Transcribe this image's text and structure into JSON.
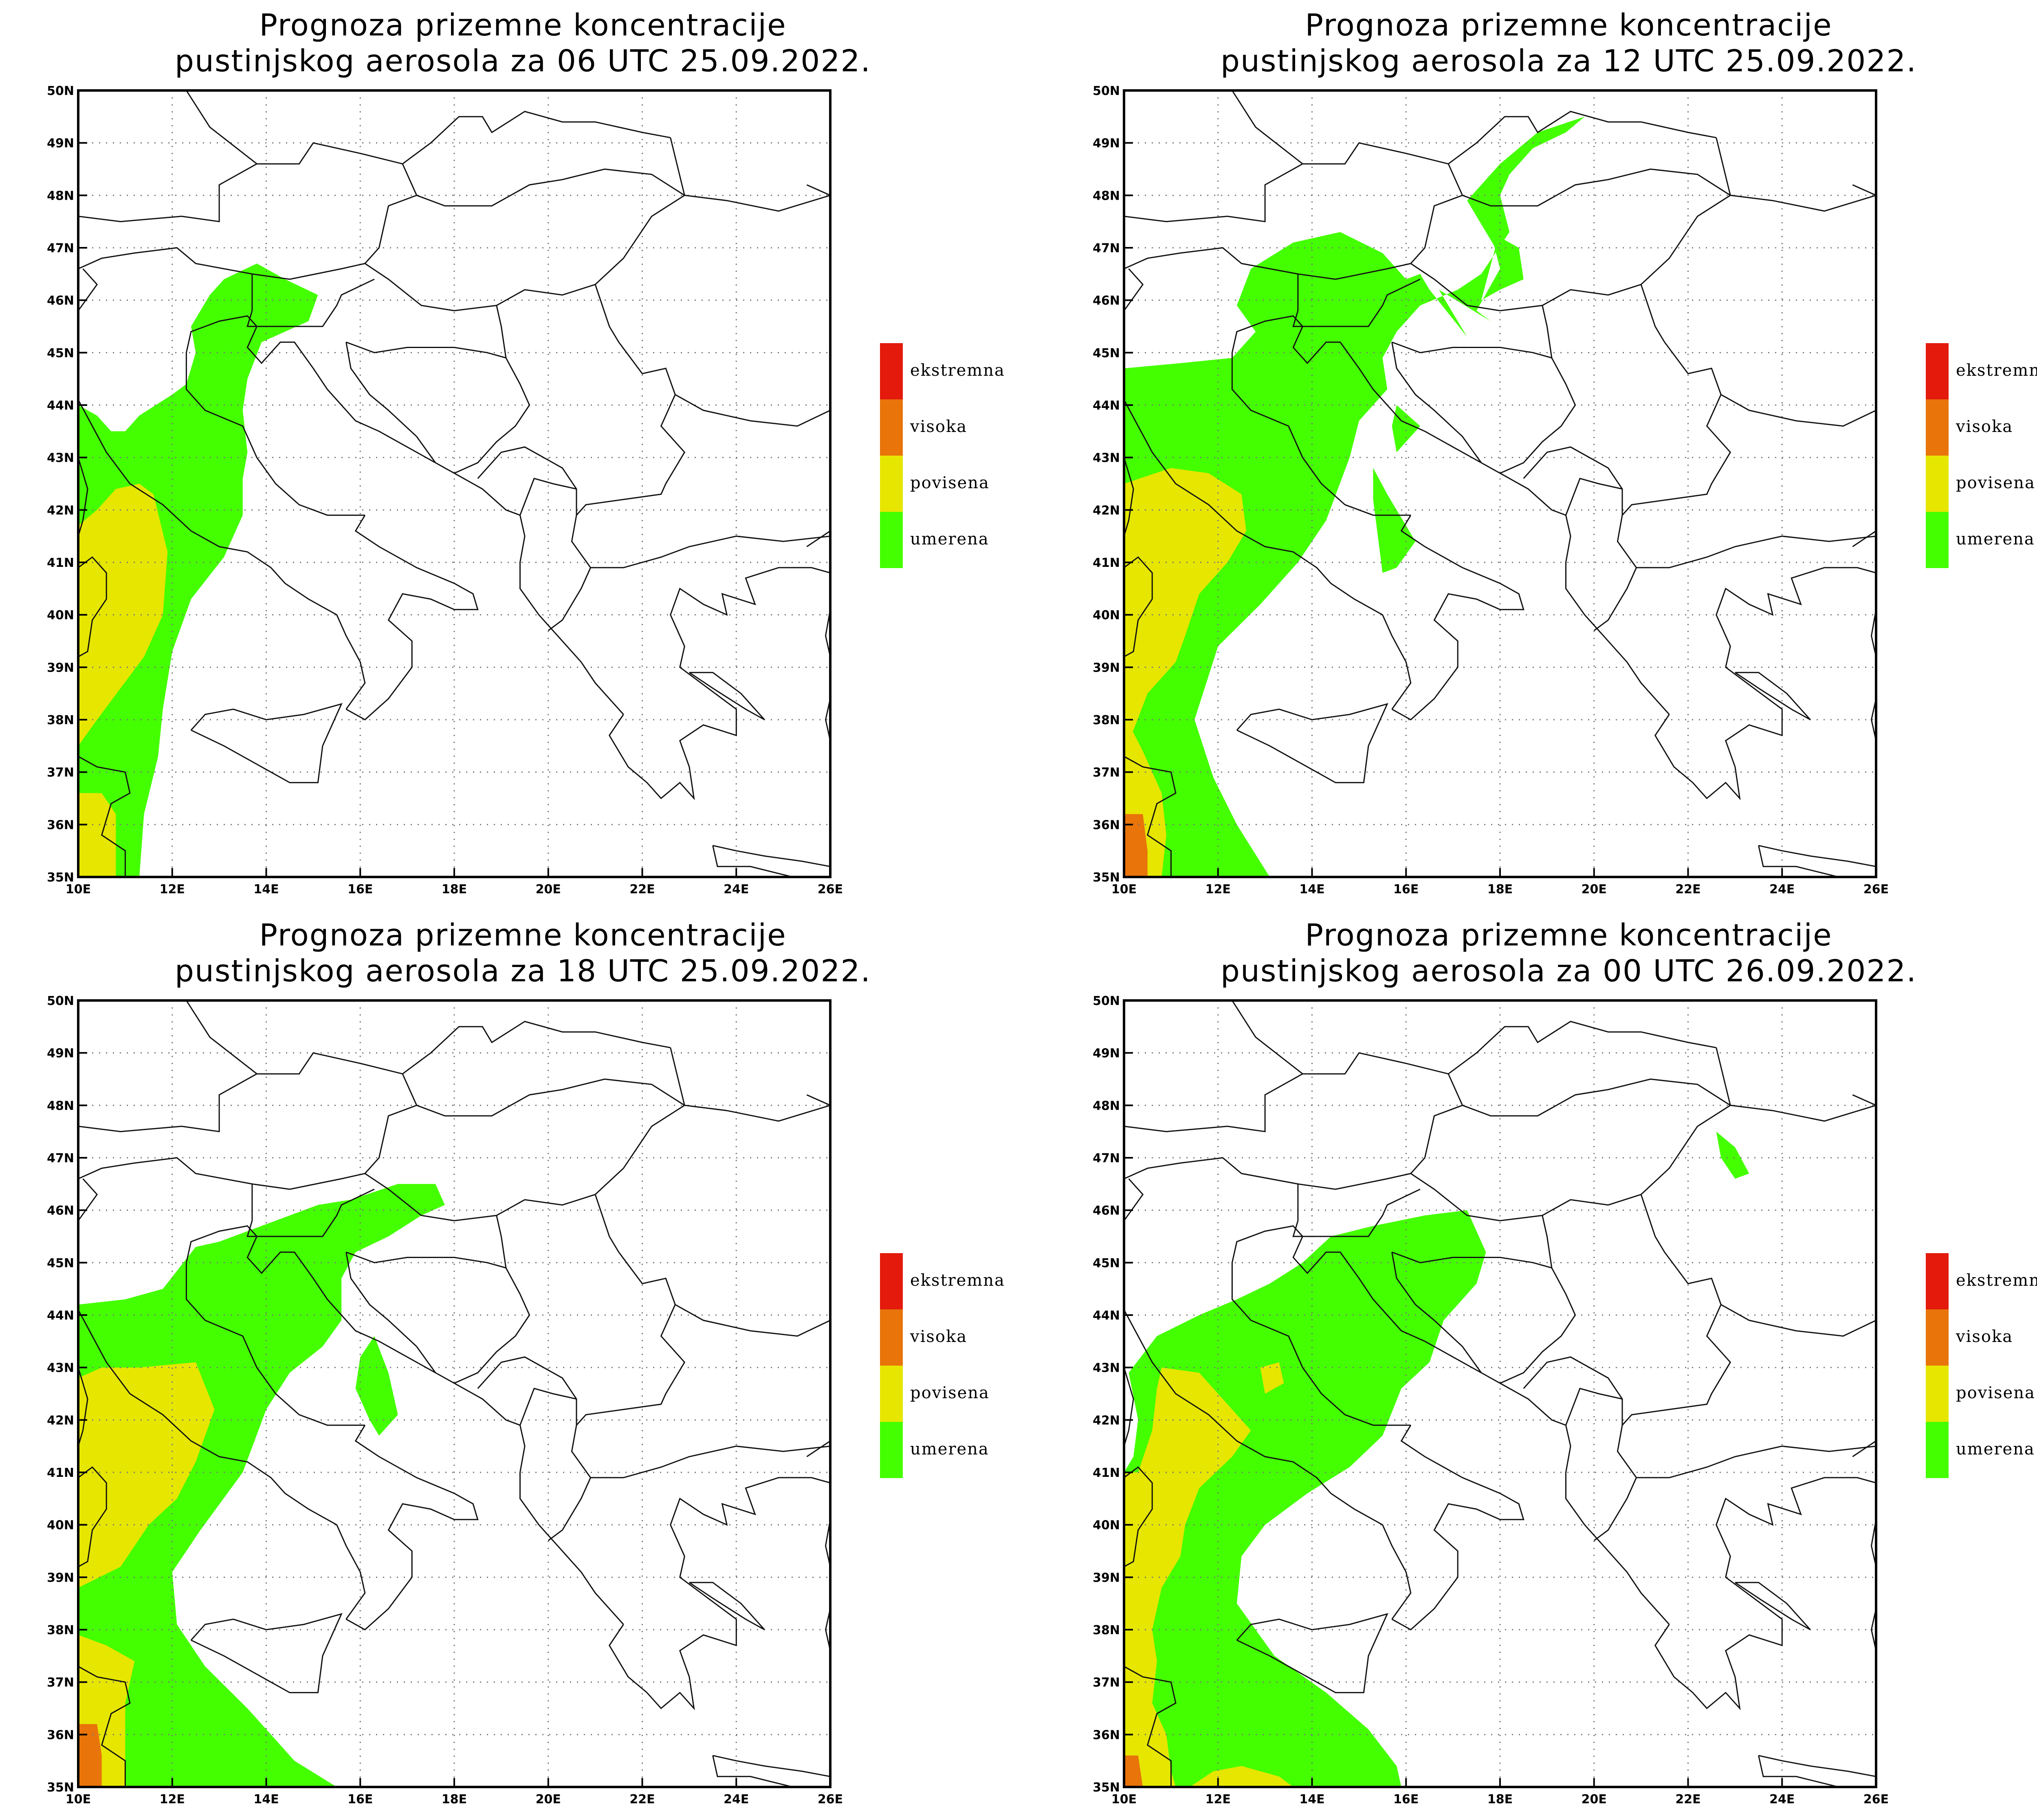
{
  "panels": [
    {
      "title_line1": "Prognoza prizemne koncentracije",
      "title_line2": "pustinjskog aerosola za 06 UTC 25.09.2022."
    },
    {
      "title_line1": "Prognoza prizemne koncentracije",
      "title_line2": "pustinjskog aerosola za 12 UTC 25.09.2022."
    },
    {
      "title_line1": "Prognoza prizemne koncentracije",
      "title_line2": "pustinjskog aerosola za 18 UTC 25.09.2022."
    },
    {
      "title_line1": "Prognoza prizemne koncentracije",
      "title_line2": "pustinjskog aerosola za 00 UTC 26.09.2022."
    }
  ],
  "axes": {
    "lon_ticks": [
      "10E",
      "12E",
      "14E",
      "16E",
      "18E",
      "20E",
      "22E",
      "24E",
      "26E"
    ],
    "lat_ticks": [
      "35N",
      "36N",
      "37N",
      "38N",
      "39N",
      "40N",
      "41N",
      "42N",
      "43N",
      "44N",
      "45N",
      "46N",
      "47N",
      "48N",
      "49N",
      "50N"
    ],
    "lon_range": [
      10,
      26
    ],
    "lat_range": [
      35,
      50
    ]
  },
  "legend": [
    {
      "label": "ekstremna",
      "color": "#e31a0c"
    },
    {
      "label": "visoka",
      "color": "#e8740a"
    },
    {
      "label": "povisena",
      "color": "#e6e600"
    },
    {
      "label": "umerena",
      "color": "#44ff00"
    }
  ]
}
